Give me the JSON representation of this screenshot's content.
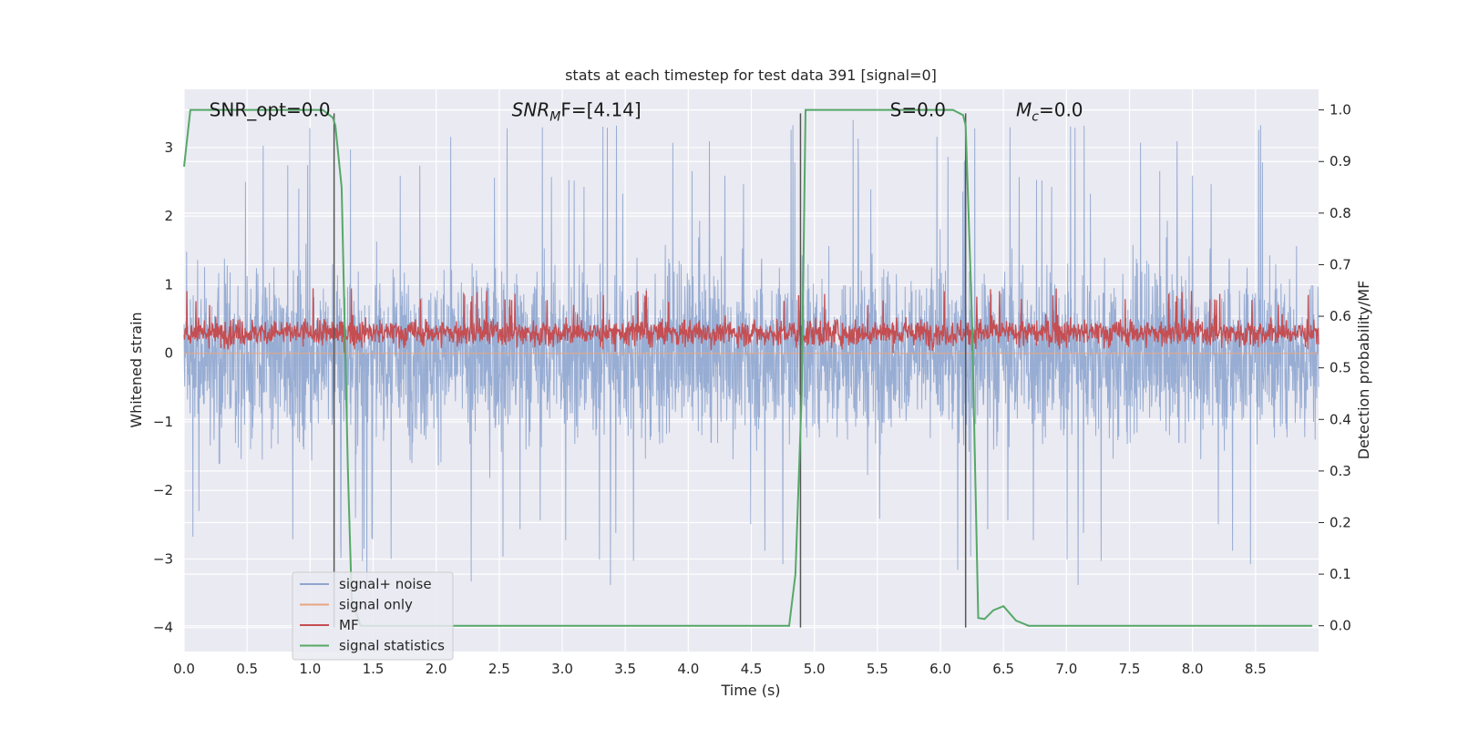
{
  "chart_data": {
    "type": "line",
    "title": "stats at each timestep for test data 391 [signal=0]",
    "xlabel": "Time (s)",
    "ylabel": "Whitened strain",
    "ylabel_right": "Detection probability/MF",
    "xlim": [
      0.0,
      9.0
    ],
    "ylim": [
      -4.35,
      3.85
    ],
    "ylim_right": [
      -0.05,
      1.04
    ],
    "xticks": [
      "0.0",
      "0.5",
      "1.0",
      "1.5",
      "2.0",
      "2.5",
      "3.0",
      "3.5",
      "4.0",
      "4.5",
      "5.0",
      "5.5",
      "6.0",
      "6.5",
      "7.0",
      "7.5",
      "8.0",
      "8.5"
    ],
    "xtick_values": [
      0.0,
      0.5,
      1.0,
      1.5,
      2.0,
      2.5,
      3.0,
      3.5,
      4.0,
      4.5,
      5.0,
      5.5,
      6.0,
      6.5,
      7.0,
      7.5,
      8.0,
      8.5
    ],
    "yticks": [
      "−4",
      "−3",
      "−2",
      "−1",
      "0",
      "1",
      "2",
      "3"
    ],
    "ytick_values": [
      -4,
      -3,
      -2,
      -1,
      0,
      1,
      2,
      3
    ],
    "yticks_right": [
      "0.0",
      "0.1",
      "0.2",
      "0.3",
      "0.4",
      "0.5",
      "0.6",
      "0.7",
      "0.8",
      "0.9",
      "1.0"
    ],
    "ytick_values_right": [
      0.0,
      0.1,
      0.2,
      0.3,
      0.4,
      0.5,
      0.6,
      0.7,
      0.8,
      0.9,
      1.0
    ],
    "grid": true,
    "legend_position": "lower-left",
    "annotations": [
      {
        "text": "SNR_opt=0.0",
        "x": 0.2,
        "y": 3.55
      },
      {
        "text": "SNR",
        "sub": "M",
        "tail": "F=[4.14]",
        "x": 2.6,
        "y": 3.55
      },
      {
        "text": "S=0.0",
        "x": 5.6,
        "y": 3.55
      },
      {
        "text": "M",
        "sub": "c",
        "tail": "=0.0",
        "x": 6.6,
        "y": 3.55
      }
    ],
    "series": [
      {
        "name": "signal+ noise",
        "color": "#8fa6cf",
        "axis": "left",
        "kind": "noise",
        "typical_range": [
          -1.8,
          2.0
        ],
        "extreme_range": [
          -4.0,
          3.5
        ]
      },
      {
        "name": "signal only",
        "color": "#e8a582",
        "axis": "left",
        "x": [
          0.0,
          9.0
        ],
        "y": [
          0.0,
          0.0
        ]
      },
      {
        "name": "MF",
        "color": "#c44e52",
        "axis": "left",
        "kind": "noise",
        "typical_range": [
          0.0,
          0.6
        ],
        "extreme_range": [
          0.0,
          0.95
        ]
      },
      {
        "name": "signal statistics",
        "color": "#55a868",
        "axis": "right",
        "x": [
          0.0,
          0.05,
          0.6,
          1.0,
          1.1,
          1.18,
          1.2,
          1.25,
          1.3,
          1.33,
          1.4,
          2.0,
          3.0,
          4.0,
          4.5,
          4.8,
          4.85,
          4.9,
          4.93,
          5.0,
          5.5,
          6.0,
          6.1,
          6.18,
          6.2,
          6.25,
          6.3,
          6.35,
          6.42,
          6.5,
          6.6,
          6.7,
          6.8,
          7.0,
          8.0,
          8.95
        ],
        "y": [
          0.89,
          1.0,
          1.0,
          1.0,
          1.0,
          0.985,
          0.97,
          0.85,
          0.3,
          0.05,
          0.0,
          0.0,
          0.0,
          0.0,
          0.0,
          0.0,
          0.1,
          0.45,
          1.0,
          1.0,
          1.0,
          1.0,
          1.0,
          0.99,
          0.97,
          0.6,
          0.015,
          0.013,
          0.03,
          0.038,
          0.01,
          0.0,
          0.0,
          0.0,
          0.0,
          0.0
        ]
      }
    ],
    "vertical_markers": [
      {
        "x": 1.19,
        "ymin": -4.0,
        "ymax": 3.5,
        "color": "#555555"
      },
      {
        "x": 4.89,
        "ymin": -4.0,
        "ymax": 3.5,
        "color": "#555555"
      },
      {
        "x": 6.2,
        "ymin": -4.0,
        "ymax": 3.5,
        "color": "#555555"
      }
    ]
  }
}
